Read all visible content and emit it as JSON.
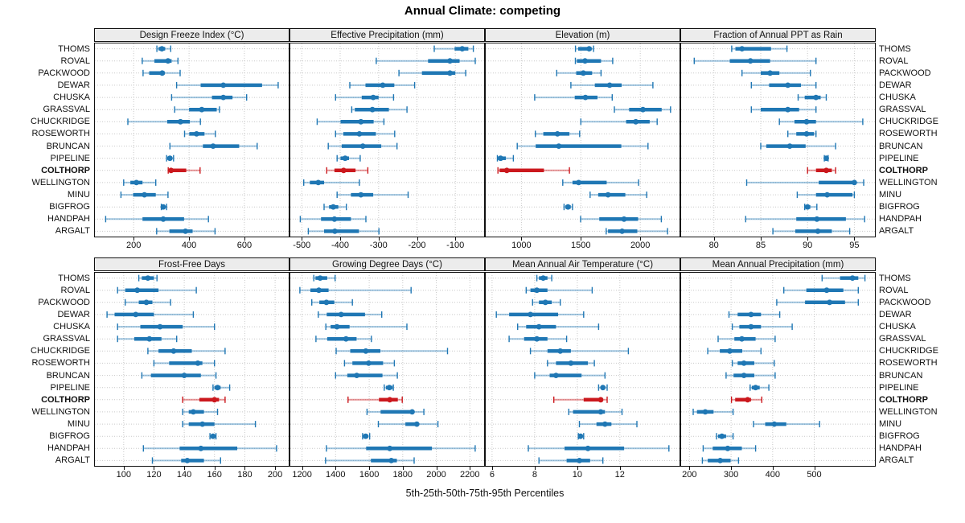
{
  "title": "Annual Climate: competing",
  "caption": "5th-25th-50th-75th-95th Percentiles",
  "highlight_site": "COLTHORP",
  "colors": {
    "series": "#1F77B4",
    "series_light": "rgba(31,119,180,0.42)",
    "highlight": "#CB181D",
    "highlight_light": "rgba(203,24,29,0.45)",
    "grid": "#c9c9c9",
    "panel_border": "#111111",
    "strip_bg": "#ececec"
  },
  "chart_data": {
    "type": "scatter",
    "variant": "horizontal-percentile-intervals",
    "layout_grid": "2x4",
    "percentile_labels": [
      "p5",
      "p25",
      "p50",
      "p75",
      "p95"
    ],
    "sites": [
      "THOMS",
      "ROVAL",
      "PACKWOOD",
      "DEWAR",
      "CHUSKA",
      "GRASSVAL",
      "CHUCKRIDGE",
      "ROSEWORTH",
      "BRUNCAN",
      "PIPELINE",
      "COLTHORP",
      "WELLINGTON",
      "MINU",
      "BIGFROG",
      "HANDPAH",
      "ARGALT"
    ],
    "panels": [
      {
        "title": "Design Freeze Index (°C)",
        "ticks": [
          200,
          400,
          600
        ],
        "xlim": [
          60,
          760
        ],
        "rows": [
          [
            284,
            290,
            302,
            314,
            334
          ],
          [
            231,
            275,
            324,
            337,
            360
          ],
          [
            234,
            256,
            303,
            312,
            368
          ],
          [
            355,
            442,
            524,
            664,
            722
          ],
          [
            337,
            483,
            524,
            557,
            608
          ],
          [
            348,
            400,
            446,
            500,
            510
          ],
          [
            179,
            321,
            369,
            403,
            441
          ],
          [
            384,
            401,
            427,
            456,
            495
          ],
          [
            331,
            450,
            487,
            581,
            646
          ],
          [
            319,
            322,
            331,
            339,
            344
          ],
          [
            325,
            328,
            335,
            390,
            440
          ],
          [
            164,
            188,
            210,
            232,
            280
          ],
          [
            154,
            198,
            239,
            280,
            324
          ],
          [
            300,
            303,
            307,
            314,
            319
          ],
          [
            99,
            232,
            307,
            382,
            470
          ],
          [
            283,
            329,
            387,
            413,
            494
          ]
        ]
      },
      {
        "title": "Effective Precipitation (mm)",
        "ticks": [
          -500,
          -400,
          -300,
          -200,
          -100
        ],
        "xlim": [
          -530,
          -25
        ],
        "rows": [
          [
            -155,
            -102,
            -82,
            -66,
            -53
          ],
          [
            -306,
            -171,
            -114,
            -89,
            -48
          ],
          [
            -247,
            -187,
            -114,
            -100,
            -73
          ],
          [
            -375,
            -334,
            -289,
            -259,
            -206
          ],
          [
            -412,
            -344,
            -314,
            -300,
            -261
          ],
          [
            -370,
            -362,
            -316,
            -273,
            -226
          ],
          [
            -460,
            -399,
            -346,
            -313,
            -286
          ],
          [
            -412,
            -392,
            -350,
            -307,
            -258
          ],
          [
            -431,
            -396,
            -341,
            -293,
            -252
          ],
          [
            -408,
            -399,
            -387,
            -377,
            -348
          ],
          [
            -435,
            -415,
            -391,
            -360,
            -328
          ],
          [
            -495,
            -479,
            -457,
            -442,
            -350
          ],
          [
            -408,
            -372,
            -346,
            -314,
            -223
          ],
          [
            -442,
            -429,
            -418,
            -405,
            -384
          ],
          [
            -504,
            -450,
            -415,
            -372,
            -333
          ],
          [
            -483,
            -442,
            -414,
            -351,
            -299
          ]
        ]
      },
      {
        "title": "Elevation (m)",
        "ticks": [
          1000,
          1500,
          2000
        ],
        "xlim": [
          700,
          2330
        ],
        "rows": [
          [
            1455,
            1478,
            1570,
            1590,
            1607
          ],
          [
            1454,
            1467,
            1535,
            1670,
            1768
          ],
          [
            1297,
            1461,
            1521,
            1595,
            1670
          ],
          [
            1416,
            1618,
            1742,
            1843,
            2106
          ],
          [
            1112,
            1449,
            1539,
            1640,
            1764
          ],
          [
            1782,
            1906,
            2022,
            2180,
            2254
          ],
          [
            1500,
            1881,
            1962,
            2079,
            2142
          ],
          [
            1117,
            1184,
            1303,
            1404,
            1490
          ],
          [
            965,
            1120,
            1315,
            1840,
            2065
          ],
          [
            798,
            803,
            825,
            870,
            933
          ],
          [
            803,
            816,
            877,
            1190,
            1404
          ],
          [
            1348,
            1430,
            1482,
            1717,
            1986
          ],
          [
            1578,
            1646,
            1729,
            1874,
            2054
          ],
          [
            1359,
            1370,
            1392,
            1415,
            1430
          ],
          [
            1498,
            1655,
            1863,
            1982,
            2177
          ],
          [
            1713,
            1729,
            1847,
            1975,
            2229
          ]
        ]
      },
      {
        "title": "Fraction of Annual PPT as Rain",
        "ticks": [
          80,
          85,
          90,
          95
        ],
        "xlim": [
          76.5,
          97.2
        ],
        "rows": [
          [
            81.9,
            82.3,
            83.0,
            86.1,
            87.8
          ],
          [
            77.9,
            81.7,
            83.9,
            86.0,
            90.9
          ],
          [
            83.0,
            85.0,
            86.0,
            87.0,
            90.3
          ],
          [
            84.0,
            85.9,
            87.9,
            89.3,
            90.9
          ],
          [
            89.0,
            89.7,
            90.9,
            91.4,
            92.0
          ],
          [
            84.0,
            85.0,
            87.9,
            89.1,
            90.9
          ],
          [
            87.0,
            88.6,
            89.9,
            90.9,
            95.9
          ],
          [
            87.9,
            88.8,
            89.9,
            90.7,
            90.9
          ],
          [
            85.0,
            85.6,
            88.1,
            89.8,
            93.0
          ],
          [
            91.8,
            91.9,
            92.0,
            92.1,
            92.2
          ],
          [
            90.0,
            90.9,
            92.0,
            92.6,
            93.0
          ],
          [
            83.5,
            91.2,
            95.0,
            95.1,
            96.0
          ],
          [
            88.9,
            90.9,
            92.1,
            94.8,
            95.0
          ],
          [
            89.7,
            89.8,
            90.0,
            90.3,
            91.0
          ],
          [
            83.4,
            88.8,
            91.0,
            94.1,
            96.1
          ],
          [
            86.3,
            88.7,
            91.1,
            92.6,
            94.5
          ]
        ]
      },
      {
        "title": "Frost-Free Days",
        "ticks": [
          100,
          120,
          140,
          160,
          180,
          200
        ],
        "xlim": [
          81,
          209
        ],
        "rows": [
          [
            110,
            112,
            116,
            120,
            122
          ],
          [
            96,
            101,
            109,
            123,
            148
          ],
          [
            101,
            110,
            115,
            119,
            131
          ],
          [
            89,
            94,
            108,
            120,
            146
          ],
          [
            96,
            111,
            124,
            139,
            160
          ],
          [
            96,
            107,
            117,
            125,
            135
          ],
          [
            116,
            123,
            133,
            145,
            167
          ],
          [
            120,
            130,
            149,
            152,
            160
          ],
          [
            112,
            118,
            140,
            151,
            161
          ],
          [
            159,
            160,
            162,
            164,
            170
          ],
          [
            139,
            150,
            160,
            163,
            167
          ],
          [
            139,
            143,
            146,
            153,
            162
          ],
          [
            139,
            143,
            152,
            160,
            187
          ],
          [
            157,
            158,
            159,
            160,
            161
          ],
          [
            113,
            137,
            151,
            175,
            201
          ],
          [
            119,
            138,
            142,
            153,
            164
          ]
        ]
      },
      {
        "title": "Growing Degree Days (°C)",
        "ticks": [
          1200,
          1400,
          1600,
          1800,
          2000,
          2200
        ],
        "xlim": [
          1130,
          2285
        ],
        "rows": [
          [
            1270,
            1280,
            1308,
            1350,
            1397
          ],
          [
            1187,
            1250,
            1300,
            1358,
            1850
          ],
          [
            1258,
            1303,
            1345,
            1392,
            1500
          ],
          [
            1297,
            1347,
            1433,
            1575,
            1675
          ],
          [
            1342,
            1370,
            1408,
            1483,
            1825
          ],
          [
            1283,
            1350,
            1462,
            1525,
            1613
          ],
          [
            1403,
            1487,
            1580,
            1667,
            2067
          ],
          [
            1453,
            1500,
            1597,
            1683,
            1750
          ],
          [
            1400,
            1470,
            1526,
            1679,
            1768
          ],
          [
            1690,
            1700,
            1720,
            1739,
            1744
          ],
          [
            1474,
            1658,
            1723,
            1771,
            1797
          ],
          [
            1587,
            1668,
            1856,
            1868,
            1926
          ],
          [
            1655,
            1816,
            1884,
            1894,
            2010
          ],
          [
            1561,
            1566,
            1579,
            1594,
            1603
          ],
          [
            1345,
            1582,
            1723,
            1974,
            2232
          ],
          [
            1340,
            1610,
            1732,
            1765,
            1868
          ]
        ]
      },
      {
        "title": "Mean Annual Air Temperature (°C)",
        "ticks": [
          6,
          8,
          10,
          12
        ],
        "xlim": [
          5.7,
          14.8
        ],
        "rows": [
          [
            8.1,
            8.2,
            8.4,
            8.6,
            8.8
          ],
          [
            7.6,
            7.8,
            8.1,
            8.6,
            10.7
          ],
          [
            7.9,
            8.2,
            8.5,
            8.8,
            9.2
          ],
          [
            6.2,
            6.8,
            7.8,
            9.1,
            10.3
          ],
          [
            7.2,
            7.6,
            8.2,
            9.0,
            11.0
          ],
          [
            6.8,
            7.5,
            8.1,
            8.6,
            9.5
          ],
          [
            7.8,
            8.6,
            9.2,
            9.7,
            12.4
          ],
          [
            8.6,
            9.0,
            9.7,
            10.5,
            10.8
          ],
          [
            8.0,
            8.7,
            9.0,
            10.2,
            11.3
          ],
          [
            11.0,
            11.1,
            11.2,
            11.3,
            11.4
          ],
          [
            8.9,
            10.3,
            11.1,
            11.2,
            11.4
          ],
          [
            9.6,
            9.8,
            11.1,
            11.3,
            12.1
          ],
          [
            10.1,
            10.9,
            11.3,
            11.6,
            12.8
          ],
          [
            10.05,
            10.1,
            10.15,
            10.2,
            10.3
          ],
          [
            7.7,
            9.4,
            10.5,
            12.2,
            14.3
          ],
          [
            8.2,
            9.5,
            10.1,
            10.6,
            11.2
          ]
        ]
      },
      {
        "title": "Mean Annual Precipitation (mm)",
        "ticks": [
          200,
          300,
          400,
          500
        ],
        "xlim": [
          180,
          646
        ],
        "rows": [
          [
            519,
            562,
            592,
            606,
            622
          ],
          [
            427,
            481,
            530,
            570,
            606
          ],
          [
            410,
            478,
            537,
            574,
            606
          ],
          [
            295,
            316,
            348,
            372,
            417
          ],
          [
            303,
            320,
            348,
            372,
            447
          ],
          [
            269,
            308,
            326,
            359,
            406
          ],
          [
            244,
            273,
            297,
            327,
            372
          ],
          [
            303,
            316,
            331,
            356,
            404
          ],
          [
            288,
            306,
            331,
            356,
            406
          ],
          [
            346,
            350,
            359,
            369,
            391
          ],
          [
            301,
            310,
            340,
            348,
            374
          ],
          [
            209,
            218,
            238,
            258,
            305
          ],
          [
            354,
            382,
            404,
            433,
            513
          ],
          [
            265,
            269,
            278,
            288,
            305
          ],
          [
            233,
            256,
            292,
            326,
            359
          ],
          [
            231,
            244,
            274,
            299,
            318
          ]
        ]
      }
    ]
  }
}
